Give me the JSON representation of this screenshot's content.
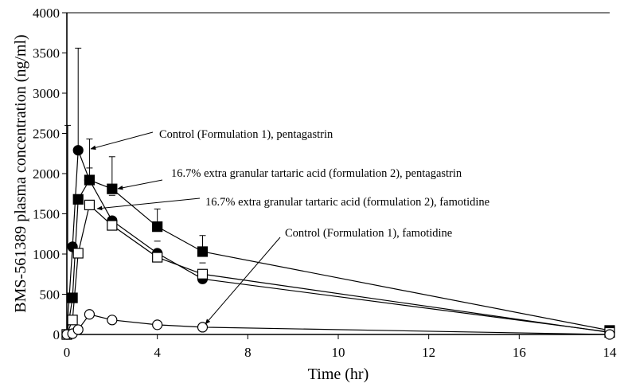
{
  "chart_data": {
    "type": "line",
    "title": "",
    "xlabel": "Time (hr)",
    "ylabel": "BMS-561389 plasma concentration (ng/ml)",
    "x_tick_labels": [
      "0",
      "4",
      "8",
      "10",
      "12",
      "16",
      "14"
    ],
    "y_tick_labels": [
      "0",
      "500",
      "1000",
      "1500",
      "2000",
      "2500",
      "3000",
      "3500",
      "4000"
    ],
    "ylim": [
      0,
      4000
    ],
    "x": [
      0,
      0.25,
      0.5,
      1,
      2,
      4,
      6,
      14
    ],
    "series": [
      {
        "name": "Control (Formulation 1), pentagastrin",
        "marker": "filled-circle",
        "values": [
          0,
          1090,
          2290,
          1920,
          1415,
          1010,
          690,
          30
        ],
        "error_upper": [
          null,
          2600,
          3560,
          null,
          null,
          null,
          null,
          null
        ]
      },
      {
        "name": "16.7% extra granular tartaric acid (formulation 2), pentagastrin",
        "marker": "filled-square",
        "values": [
          0,
          455,
          1680,
          1920,
          1810,
          1340,
          1030,
          50
        ],
        "error_upper": [
          null,
          null,
          null,
          2430,
          2210,
          1560,
          1230,
          null
        ],
        "error_lower": [
          null,
          null,
          null,
          2070,
          1730,
          1160,
          890,
          null
        ]
      },
      {
        "name": "16.7% extra granular tartaric acid (formulation 2), famotidine",
        "marker": "open-square",
        "values": [
          0,
          180,
          1010,
          1610,
          1356,
          960,
          750,
          25
        ],
        "error_upper": [
          null,
          null,
          null,
          null,
          null,
          null,
          null,
          null
        ]
      },
      {
        "name": "Control (Formulation 1), famotidine",
        "marker": "open-circle",
        "values": [
          0,
          10,
          60,
          250,
          180,
          120,
          90,
          0
        ],
        "error_upper": [
          null,
          null,
          null,
          null,
          null,
          null,
          null,
          null
        ]
      }
    ],
    "annotations": [
      {
        "text": "Control (Formulation 1), pentagastrin",
        "points_to_series": 0
      },
      {
        "text": "16.7% extra granular tartaric acid (formulation 2), pentagastrin",
        "points_to_series": 1
      },
      {
        "text": "16.7% extra granular tartaric acid (formulation 2), famotidine",
        "points_to_series": 2
      },
      {
        "text": "Control (Formulation 1), famotidine",
        "points_to_series": 3
      }
    ],
    "grid": false,
    "legend": "none"
  }
}
